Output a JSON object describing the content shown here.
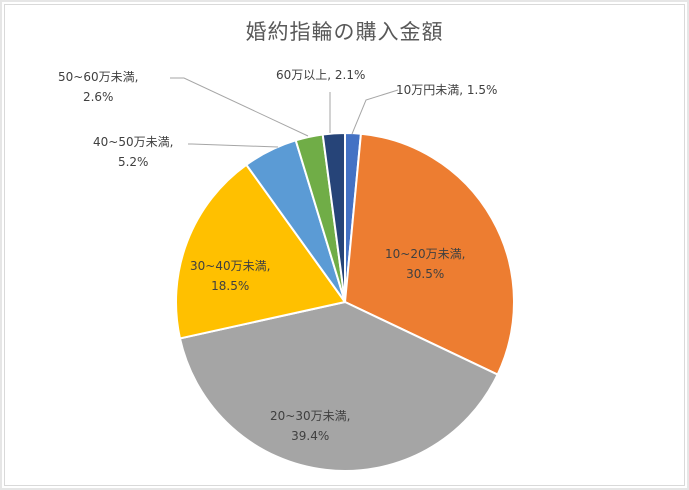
{
  "chart_data": {
    "type": "pie",
    "title": "婚約指輪の購入金額",
    "categories": [
      "10万円未満",
      "10~20万未満",
      "20~30万未満",
      "30~40万未満",
      "40~50万未満",
      "50~60万未満",
      "60万以上"
    ],
    "values": [
      1.5,
      30.5,
      39.4,
      18.5,
      5.2,
      2.6,
      2.1
    ],
    "unit": "%",
    "colors": [
      "#4472c4",
      "#ed7d31",
      "#a5a5a5",
      "#ffc000",
      "#5b9bd5",
      "#70ad47",
      "#264478"
    ],
    "start_angle_deg": 0,
    "direction": "clockwise",
    "legend": "none",
    "data_labels": [
      {
        "category": "10万円未満",
        "line1": "10万円未満, 1.5%",
        "line2": ""
      },
      {
        "category": "10~20万未満",
        "line1": "10~20万未満,",
        "line2": "30.5%"
      },
      {
        "category": "20~30万未満",
        "line1": "20~30万未満,",
        "line2": "39.4%"
      },
      {
        "category": "30~40万未満",
        "line1": "30~40万未満,",
        "line2": "18.5%"
      },
      {
        "category": "40~50万未満",
        "line1": "40~50万未満,",
        "line2": "5.2%"
      },
      {
        "category": "50~60万未満",
        "line1": "50~60万未満,",
        "line2": "2.6%"
      },
      {
        "category": "60万以上",
        "line1": "60万以上, 2.1%",
        "line2": ""
      }
    ]
  },
  "colors": {
    "title": "#595959",
    "label": "#404040",
    "leader_line": "#a6a6a6",
    "border": "#d9d9d9"
  }
}
